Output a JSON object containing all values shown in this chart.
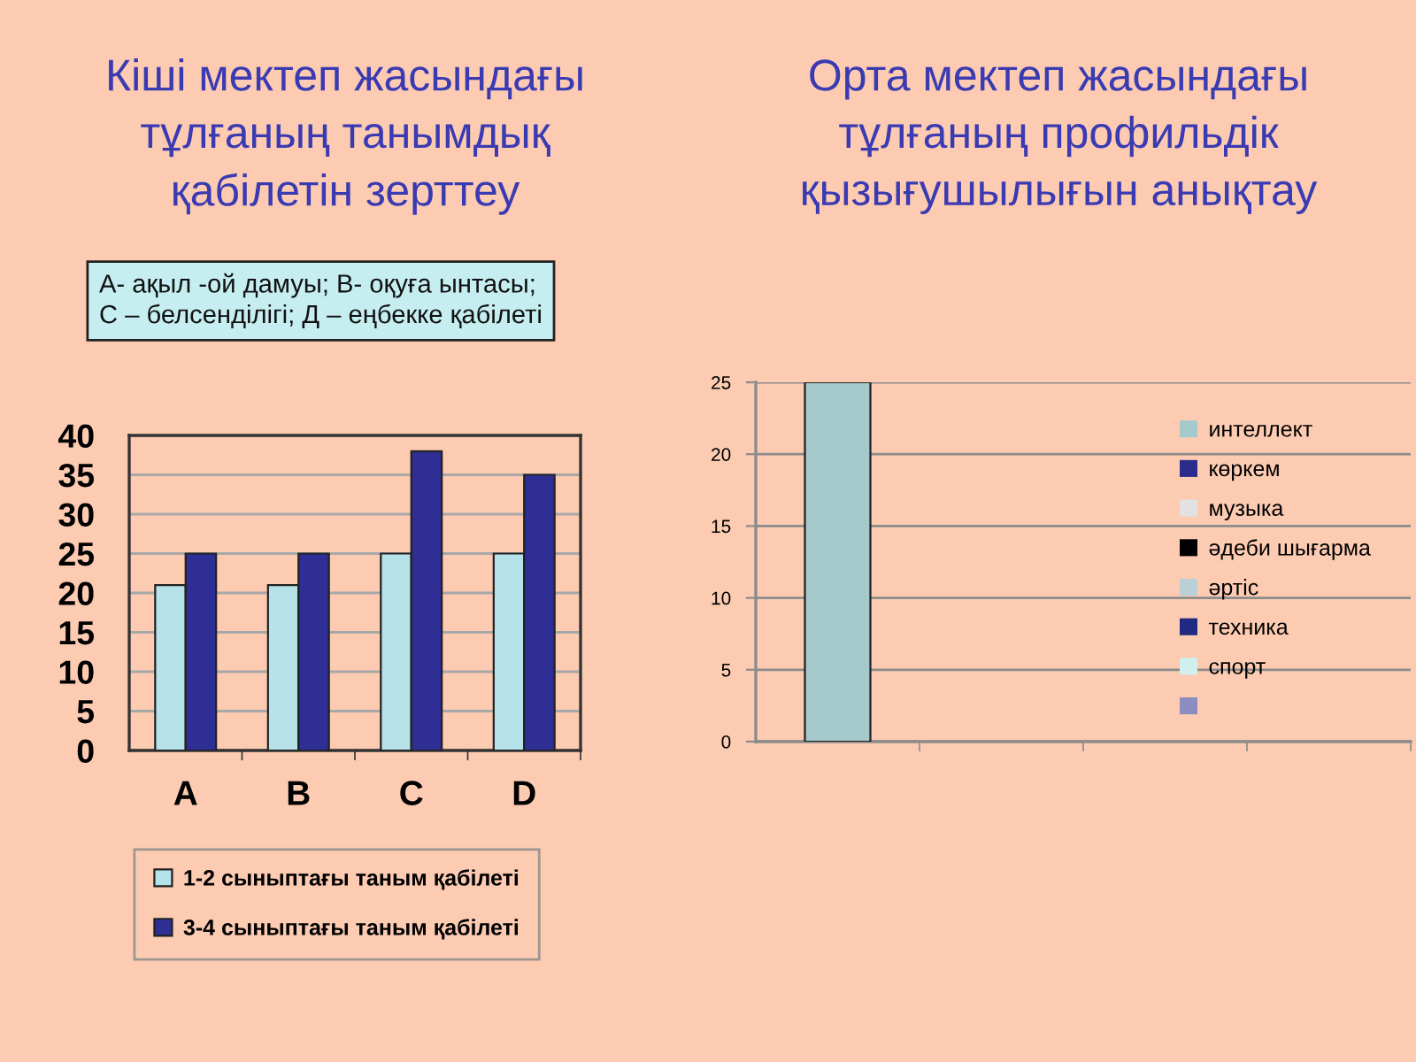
{
  "chart_data": [
    {
      "type": "bar",
      "title": "Кіші мектеп жасындағы\nтұлғаның танымдық\nқабілетін зерттеу",
      "annotations": [
        "А- ақыл -ой дамуы; В- оқуға ынтасы;\nС – белсенділігі; Д – еңбекке қабілеті"
      ],
      "categories": [
        "A",
        "B",
        "C",
        "D"
      ],
      "series": [
        {
          "name": "1-2 сыныптағы таным қабілеті",
          "color": "#b6e2ea",
          "values": [
            21,
            21,
            25,
            25
          ]
        },
        {
          "name": "3-4 сыныптағы таным қабілеті",
          "color": "#2e2e94",
          "values": [
            25,
            25,
            38,
            35
          ]
        }
      ],
      "ylim": [
        0,
        40
      ],
      "yticks": [
        0,
        5,
        10,
        15,
        20,
        25,
        30,
        35,
        40
      ],
      "grid": "y",
      "legend": "bottom"
    },
    {
      "type": "bar",
      "title": "Орта мектеп жасындағы\nтұлғаның профильдік\nқызығушылығын анықтау",
      "categories": [
        null,
        null,
        null,
        null
      ],
      "series": [
        {
          "name": "интеллект",
          "color": "#a6c9cc",
          "values": [
            25,
            null,
            null,
            null
          ]
        },
        {
          "name": "көркем",
          "color": "#2b2b8c",
          "values": [
            null,
            null,
            null,
            null
          ]
        },
        {
          "name": "музыка",
          "color": "#e2e2e2",
          "values": [
            null,
            null,
            null,
            null
          ]
        },
        {
          "name": "әдеби шығарма",
          "color": "#000000",
          "values": [
            null,
            null,
            null,
            null
          ]
        },
        {
          "name": "әртіс",
          "color": "#b9d0d6",
          "values": [
            null,
            null,
            null,
            null
          ]
        },
        {
          "name": "техника",
          "color": "#1f2a80",
          "values": [
            null,
            null,
            null,
            null
          ]
        },
        {
          "name": "спорт",
          "color": "#d2eff0",
          "values": [
            null,
            null,
            null,
            null
          ]
        },
        {
          "color": "#8c8cc2",
          "values": [
            null,
            null,
            null,
            null
          ]
        }
      ],
      "ylim": [
        0,
        25
      ],
      "yticks": [
        0,
        5,
        10,
        15,
        20,
        25
      ],
      "grid": "y",
      "legend": "right",
      "tick_labels": "y"
    }
  ]
}
